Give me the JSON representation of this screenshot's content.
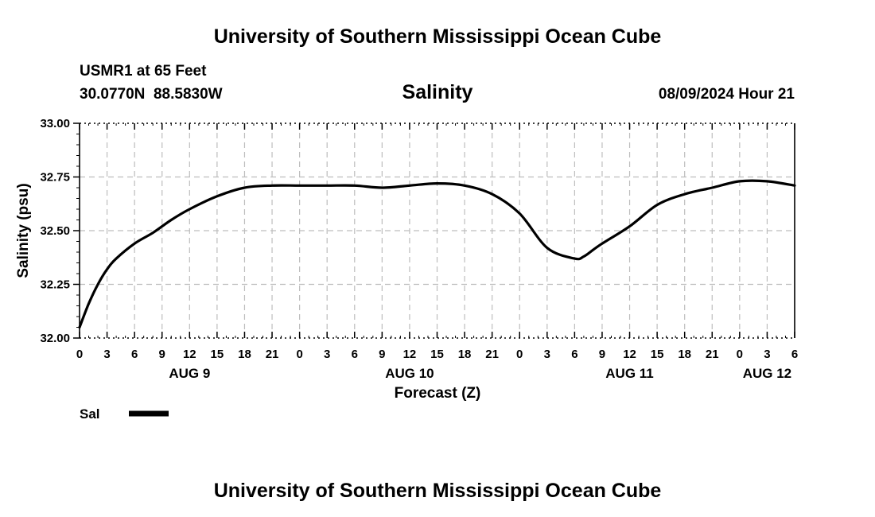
{
  "header": {
    "title": "University of Southern Mississippi Ocean Cube",
    "station": "USMR1 at 65 Feet",
    "coords": "30.0770N  88.5830W",
    "datetime": "08/09/2024 Hour 21",
    "footer_title": "University of Southern Mississippi Ocean Cube"
  },
  "chart_data": {
    "type": "line",
    "title": "Salinity",
    "xlabel": "Forecast (Z)",
    "ylabel": "Salinity (psu)",
    "ylim": [
      32.0,
      33.0
    ],
    "yticks": [
      "32.00",
      "32.25",
      "32.50",
      "32.75",
      "33.00"
    ],
    "xlim_hours": [
      0,
      78
    ],
    "xtick_step_hours": 3,
    "xtick_labels": [
      "0",
      "3",
      "6",
      "9",
      "12",
      "15",
      "18",
      "21",
      "0",
      "3",
      "6",
      "9",
      "12",
      "15",
      "18",
      "21",
      "0",
      "3",
      "6",
      "9",
      "12",
      "15",
      "18",
      "21",
      "0",
      "3",
      "6"
    ],
    "day_labels": [
      {
        "label": "AUG 9",
        "hour": 12
      },
      {
        "label": "AUG 10",
        "hour": 36
      },
      {
        "label": "AUG 11",
        "hour": 60
      },
      {
        "label": "AUG 12",
        "hour": 75
      }
    ],
    "grid": true,
    "legend_position": "bottom-left",
    "series": [
      {
        "name": "Sal",
        "color": "#000000",
        "x": [
          0,
          1,
          2,
          3,
          4,
          6,
          8,
          10,
          12,
          15,
          18,
          21,
          24,
          27,
          30,
          33,
          36,
          39,
          42,
          45,
          48,
          51,
          54,
          55,
          56,
          57,
          60,
          63,
          66,
          69,
          72,
          75,
          78
        ],
        "y": [
          32.05,
          32.16,
          32.25,
          32.32,
          32.37,
          32.44,
          32.49,
          32.55,
          32.6,
          32.66,
          32.7,
          32.71,
          32.71,
          32.71,
          32.71,
          32.7,
          32.71,
          32.72,
          32.71,
          32.67,
          32.58,
          32.42,
          32.37,
          32.38,
          32.41,
          32.44,
          32.52,
          32.62,
          32.67,
          32.7,
          32.73,
          32.73,
          32.71
        ]
      }
    ]
  }
}
